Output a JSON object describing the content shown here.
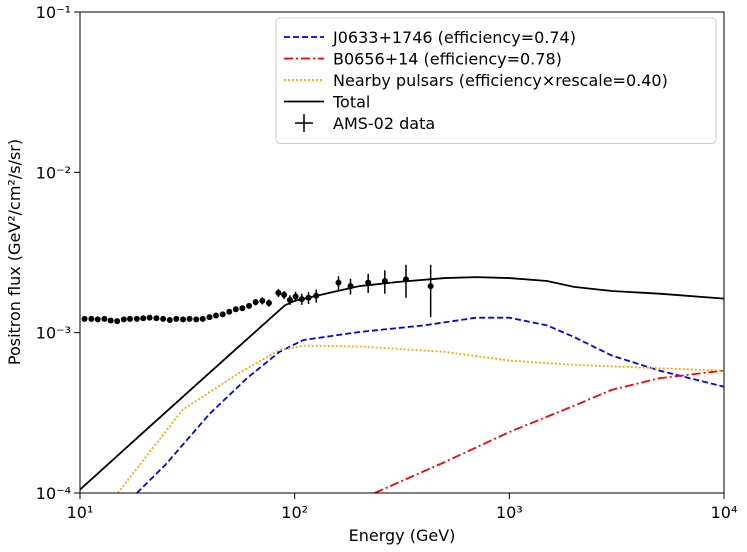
{
  "chart_data": {
    "type": "line",
    "xlabel": "Energy (GeV)",
    "ylabel": "Positron flux (GeV²/cm²/s/sr)",
    "xscale": "log",
    "yscale": "log",
    "xlim": [
      10,
      10000
    ],
    "ylim": [
      0.0001,
      0.1
    ],
    "xticks": [
      {
        "value": 10,
        "label": "10¹"
      },
      {
        "value": 100,
        "label": "10²"
      },
      {
        "value": 1000,
        "label": "10³"
      },
      {
        "value": 10000,
        "label": "10⁴"
      }
    ],
    "yticks": [
      {
        "value": 0.0001,
        "label": "10⁻⁴"
      },
      {
        "value": 0.001,
        "label": "10⁻³"
      },
      {
        "value": 0.01,
        "label": "10⁻²"
      },
      {
        "value": 0.1,
        "label": "10⁻¹"
      }
    ],
    "legend": "upper right",
    "series": [
      {
        "name": "J0633+1746 (efficiency=0.74)",
        "color": "#0000ff",
        "dash": "--",
        "x": [
          18.4,
          25,
          40,
          60,
          85,
          110,
          200,
          400,
          700,
          1000,
          1500,
          2000,
          3000,
          5000,
          10000
        ],
        "values": [
          0.0001,
          0.00015,
          0.00031,
          0.00052,
          0.00076,
          0.0009,
          0.00101,
          0.00111,
          0.00124,
          0.00124,
          0.00111,
          0.00094,
          0.00072,
          0.00058,
          0.00046
        ]
      },
      {
        "name": "B0656+14 (efficiency=0.78)",
        "color": "#ff0000",
        "dash": "-.",
        "x": [
          236,
          500,
          1000,
          2000,
          3000,
          5000,
          10000
        ],
        "values": [
          0.0001,
          0.000156,
          0.00024,
          0.00035,
          0.00044,
          0.00052,
          0.00058
        ]
      },
      {
        "name": "Nearby pulsars (efficiency×rescale=0.40)",
        "color": "#ffa500",
        "dash": ":",
        "x": [
          15,
          30,
          55,
          85,
          110,
          200,
          500,
          1000,
          2000,
          5000,
          10000
        ],
        "values": [
          0.0001,
          0.00033,
          0.00056,
          0.00078,
          0.00083,
          0.00082,
          0.00076,
          0.00067,
          0.00063,
          0.0006,
          0.00058
        ]
      },
      {
        "name": "Total",
        "color": "#000000",
        "dash": "-",
        "x": [
          10,
          20,
          40,
          90,
          100,
          150,
          200,
          300,
          500,
          700,
          1000,
          1500,
          2000,
          3000,
          5000,
          10000
        ],
        "values": [
          0.000105,
          0.000243,
          0.00056,
          0.00148,
          0.00158,
          0.00179,
          0.00195,
          0.00207,
          0.00219,
          0.00222,
          0.00219,
          0.0021,
          0.00193,
          0.00182,
          0.00175,
          0.00163
        ]
      },
      {
        "name": "AMS-02 data",
        "color": "#000000",
        "x": [
          10.5,
          11.3,
          12.1,
          13.0,
          13.9,
          14.9,
          16.0,
          17.1,
          18.4,
          19.7,
          21.1,
          22.7,
          24.4,
          26.2,
          28.1,
          30.2,
          32.4,
          34.8,
          37.3,
          40.1,
          43.0,
          46.2,
          49.6,
          53.2,
          57.1,
          61.3,
          65.8,
          70.7,
          75.9,
          84,
          89.3,
          95,
          101,
          108,
          116,
          126,
          160,
          182,
          220,
          263,
          330,
          430
        ],
        "values": [
          0.00122,
          0.00122,
          0.00121,
          0.00122,
          0.00119,
          0.00118,
          0.00121,
          0.00122,
          0.00122,
          0.00123,
          0.00124,
          0.00123,
          0.00122,
          0.0012,
          0.00122,
          0.00121,
          0.00122,
          0.00121,
          0.00122,
          0.00125,
          0.00128,
          0.0013,
          0.00135,
          0.0014,
          0.00142,
          0.00147,
          0.00155,
          0.00158,
          0.00153,
          0.00177,
          0.00172,
          0.0016,
          0.00168,
          0.00162,
          0.00165,
          0.0017,
          0.00205,
          0.00195,
          0.00205,
          0.0021,
          0.00215,
          0.00195
        ],
        "errors": [
          2e-05,
          2e-05,
          2e-05,
          2e-05,
          2e-05,
          2e-05,
          2e-05,
          2e-05,
          2e-05,
          2e-05,
          2e-05,
          2e-05,
          2e-05,
          2e-05,
          3e-05,
          3e-05,
          3e-05,
          3e-05,
          3e-05,
          4e-05,
          4e-05,
          4e-05,
          5e-05,
          5e-05,
          5e-05,
          6e-05,
          7e-05,
          8e-05,
          8e-05,
          0.0001,
          0.0001,
          0.00011,
          0.00012,
          0.00013,
          0.00014,
          0.00016,
          0.0002,
          0.00022,
          0.00028,
          0.00035,
          0.0005,
          0.0007
        ]
      }
    ]
  }
}
